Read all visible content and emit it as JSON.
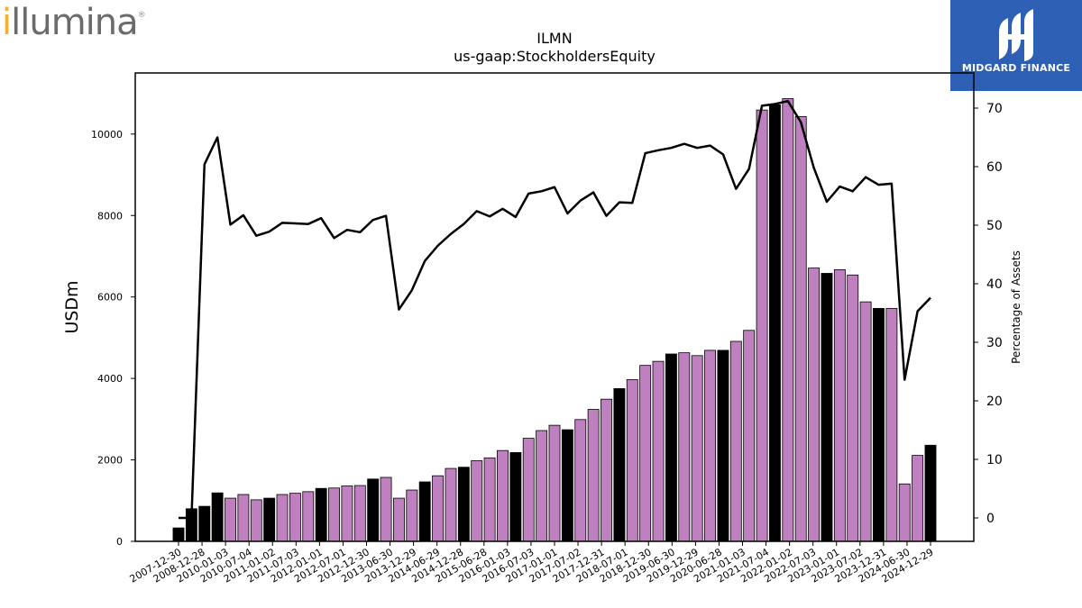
{
  "logo_left": {
    "text_prefix": "i",
    "text_rest": "llumina",
    "registered": "®"
  },
  "logo_right": {
    "name": "MIDGARD FINANCE"
  },
  "chart_data": {
    "type": "bar",
    "title": "ILMN",
    "subtitle": "us-gaap:StockholdersEquity",
    "ylabel": "USDm",
    "y2label": "Percentage of Assets",
    "ylim": [
      0,
      11500
    ],
    "y2lim": [
      -4,
      76
    ],
    "yticks": [
      0,
      2000,
      4000,
      6000,
      8000,
      10000
    ],
    "y2ticks": [
      0,
      10,
      20,
      30,
      40,
      50,
      60,
      70
    ],
    "grid": false,
    "colors": {
      "annual_bar": "#000000",
      "quarter_bar": "#bf80bf",
      "line": "#000000"
    },
    "x_tick_labels": [
      "2007-12-30",
      "2008-12-28",
      "2010-01-03",
      "2010-07-04",
      "2011-01-02",
      "2011-07-03",
      "2012-01-01",
      "2012-07-01",
      "2012-12-30",
      "2013-06-30",
      "2013-12-29",
      "2014-06-29",
      "2014-12-28",
      "2015-06-28",
      "2016-01-03",
      "2016-07-03",
      "2017-01-01",
      "2017-07-02",
      "2017-12-31",
      "2018-07-01",
      "2018-12-30",
      "2019-06-30",
      "2019-12-29",
      "2020-06-28",
      "2021-01-03",
      "2021-07-04",
      "2022-01-02",
      "2022-07-03",
      "2023-01-01",
      "2023-07-02",
      "2023-12-31",
      "2024-06-30",
      "2024-12-29"
    ],
    "bars": [
      {
        "value": 330,
        "annual": true
      },
      {
        "value": 800,
        "annual": true
      },
      {
        "value": 860,
        "annual": true
      },
      {
        "value": 1190,
        "annual": true
      },
      {
        "value": 1060,
        "annual": false
      },
      {
        "value": 1150,
        "annual": false
      },
      {
        "value": 1020,
        "annual": false
      },
      {
        "value": 1060,
        "annual": true
      },
      {
        "value": 1150,
        "annual": false
      },
      {
        "value": 1180,
        "annual": false
      },
      {
        "value": 1220,
        "annual": false
      },
      {
        "value": 1300,
        "annual": true
      },
      {
        "value": 1310,
        "annual": false
      },
      {
        "value": 1360,
        "annual": false
      },
      {
        "value": 1370,
        "annual": false
      },
      {
        "value": 1530,
        "annual": true
      },
      {
        "value": 1570,
        "annual": false
      },
      {
        "value": 1060,
        "annual": false
      },
      {
        "value": 1260,
        "annual": false
      },
      {
        "value": 1460,
        "annual": true
      },
      {
        "value": 1610,
        "annual": false
      },
      {
        "value": 1790,
        "annual": false
      },
      {
        "value": 1820,
        "annual": true
      },
      {
        "value": 1980,
        "annual": false
      },
      {
        "value": 2050,
        "annual": false
      },
      {
        "value": 2230,
        "annual": false
      },
      {
        "value": 2180,
        "annual": true
      },
      {
        "value": 2530,
        "annual": false
      },
      {
        "value": 2720,
        "annual": false
      },
      {
        "value": 2850,
        "annual": false
      },
      {
        "value": 2740,
        "annual": true
      },
      {
        "value": 2990,
        "annual": false
      },
      {
        "value": 3240,
        "annual": false
      },
      {
        "value": 3490,
        "annual": false
      },
      {
        "value": 3750,
        "annual": true
      },
      {
        "value": 3970,
        "annual": false
      },
      {
        "value": 4320,
        "annual": false
      },
      {
        "value": 4420,
        "annual": false
      },
      {
        "value": 4600,
        "annual": true
      },
      {
        "value": 4630,
        "annual": false
      },
      {
        "value": 4560,
        "annual": false
      },
      {
        "value": 4690,
        "annual": false
      },
      {
        "value": 4690,
        "annual": true
      },
      {
        "value": 4910,
        "annual": false
      },
      {
        "value": 5180,
        "annual": false
      },
      {
        "value": 10590,
        "annual": false
      },
      {
        "value": 10720,
        "annual": true
      },
      {
        "value": 10870,
        "annual": false
      },
      {
        "value": 10430,
        "annual": false
      },
      {
        "value": 6710,
        "annual": false
      },
      {
        "value": 6580,
        "annual": true
      },
      {
        "value": 6670,
        "annual": false
      },
      {
        "value": 6540,
        "annual": false
      },
      {
        "value": 5880,
        "annual": false
      },
      {
        "value": 5720,
        "annual": true
      },
      {
        "value": 5720,
        "annual": false
      },
      {
        "value": 1410,
        "annual": false
      },
      {
        "value": 2110,
        "annual": false
      },
      {
        "value": 2360,
        "annual": true
      }
    ],
    "line_pct": [
      0,
      0,
      60.4,
      65,
      50.1,
      51.7,
      48.2,
      48.9,
      50.4,
      50.3,
      50.2,
      51.2,
      47.8,
      49.2,
      48.8,
      50.9,
      51.6,
      35.6,
      38.9,
      43.9,
      46.5,
      48.5,
      50.2,
      52.4,
      51.5,
      52.8,
      51.4,
      55.4,
      55.8,
      56.5,
      52,
      54.2,
      55.6,
      51.6,
      53.9,
      53.8,
      62.3,
      62.8,
      63.2,
      63.9,
      63.2,
      63.6,
      62.1,
      56.2,
      59.6,
      70.4,
      70.7,
      71.2,
      67.6,
      59.8,
      54,
      56.6,
      55.8,
      58.2,
      56.9,
      57.1,
      23.6,
      35.3,
      37.6
    ]
  }
}
